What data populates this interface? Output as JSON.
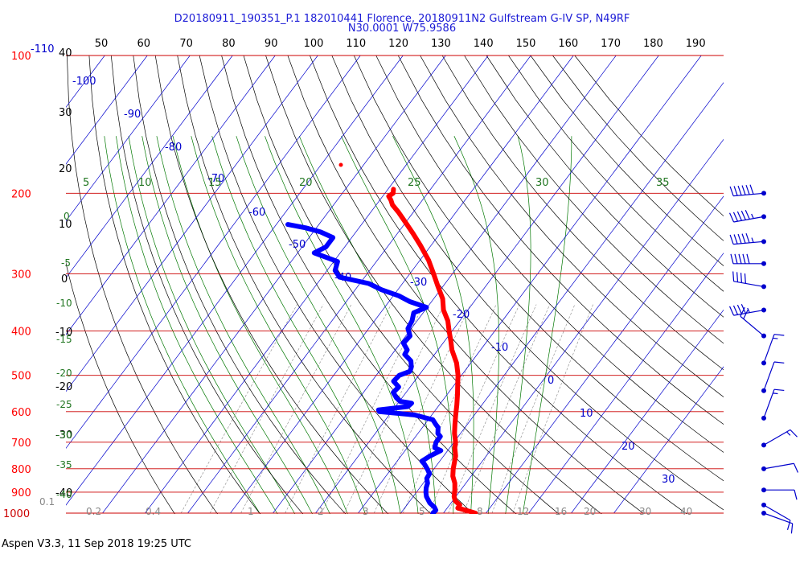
{
  "title_line1": "D20180911_190351_P.1 182010441 Florence, 20180911N2 Gulfstream G-IV SP, N49RF",
  "title_line2": "N30.0001 W75.9586",
  "footer": "Aspen V3.3, 11 Sep 2018  19:25 UTC",
  "chart_data": {
    "type": "skew-t log-p",
    "pressure_range": [
      1000,
      100
    ],
    "temperature_range_bottom": [
      -40,
      40
    ],
    "pressure_levels": [
      100,
      200,
      300,
      400,
      500,
      600,
      700,
      800,
      900,
      1000
    ],
    "pressure_labels": [
      "100",
      "200",
      "300",
      "400",
      "500",
      "600",
      "700",
      "800",
      "900",
      "1000"
    ],
    "top_fahrenheit_ticks": [
      "50",
      "60",
      "70",
      "80",
      "90",
      "100",
      "110",
      "120",
      "130",
      "140",
      "150",
      "160",
      "170",
      "180",
      "190"
    ],
    "top_left_f_label": "-110",
    "left_celsius_ticks": [
      "40",
      "30",
      "20",
      "10",
      "0",
      "-10",
      "-20",
      "-30",
      "-40"
    ],
    "isotherm_labels": [
      "-100",
      "-90",
      "-80",
      "-70",
      "-60",
      "-50",
      "-40",
      "-30",
      "-20",
      "-10",
      "0",
      "10",
      "20",
      "30"
    ],
    "theta_e_labels": [
      "5",
      "10",
      "15",
      "20",
      "25",
      "30",
      "35"
    ],
    "theta_labels_left": [
      "0",
      "-5",
      "-10",
      "-15",
      "-20",
      "-25",
      "-30",
      "-35",
      "-40"
    ],
    "mixing_ratio_labels": [
      "0.1",
      "0.2",
      "0.4",
      "1",
      "2",
      "3",
      "5",
      "8",
      "12",
      "16",
      "20",
      "30",
      "40"
    ],
    "series": [
      {
        "name": "Temperature",
        "color": "#ff0000",
        "points": [
          [
            1000,
            27.5
          ],
          [
            990,
            25.6
          ],
          [
            975,
            22.5
          ],
          [
            960,
            22.4
          ],
          [
            940,
            20.6
          ],
          [
            920,
            19.6
          ],
          [
            890,
            18.6
          ],
          [
            860,
            17.4
          ],
          [
            830,
            15.7
          ],
          [
            800,
            14.5
          ],
          [
            770,
            13.5
          ],
          [
            750,
            12.8
          ],
          [
            720,
            11.2
          ],
          [
            700,
            10.4
          ],
          [
            670,
            8.6
          ],
          [
            640,
            7.1
          ],
          [
            610,
            5.6
          ],
          [
            580,
            4.1
          ],
          [
            550,
            2.4
          ],
          [
            520,
            0.5
          ],
          [
            500,
            -0.8
          ],
          [
            470,
            -3.3
          ],
          [
            440,
            -6.7
          ],
          [
            420,
            -8.6
          ],
          [
            400,
            -10.7
          ],
          [
            380,
            -12.8
          ],
          [
            360,
            -15.7
          ],
          [
            340,
            -17.9
          ],
          [
            320,
            -21.1
          ],
          [
            300,
            -24.4
          ],
          [
            280,
            -28.0
          ],
          [
            260,
            -32.5
          ],
          [
            245,
            -36.3
          ],
          [
            230,
            -40.5
          ],
          [
            220,
            -43.5
          ],
          [
            212,
            -46.2
          ],
          [
            207,
            -47.4
          ],
          [
            203,
            -48.6
          ],
          [
            200,
            -48.1
          ],
          [
            196,
            -48.7
          ]
        ]
      },
      {
        "name": "Dewpoint",
        "color": "#0000ff",
        "points": [
          [
            1000,
            17.5
          ],
          [
            985,
            17.7
          ],
          [
            970,
            16.8
          ],
          [
            950,
            15.0
          ],
          [
            920,
            13.1
          ],
          [
            900,
            12.2
          ],
          [
            880,
            11.5
          ],
          [
            860,
            11.0
          ],
          [
            840,
            10.0
          ],
          [
            820,
            9.8
          ],
          [
            800,
            8.4
          ],
          [
            780,
            6.8
          ],
          [
            770,
            5.8
          ],
          [
            750,
            6.8
          ],
          [
            730,
            8.4
          ],
          [
            720,
            6.5
          ],
          [
            700,
            5.8
          ],
          [
            680,
            5.8
          ],
          [
            670,
            4.7
          ],
          [
            650,
            3.7
          ],
          [
            640,
            2.6
          ],
          [
            625,
            1.1
          ],
          [
            610,
            -4.1
          ],
          [
            600,
            -12.9
          ],
          [
            595,
            -13.4
          ],
          [
            585,
            -7.1
          ],
          [
            575,
            -6.8
          ],
          [
            570,
            -9.8
          ],
          [
            560,
            -11.3
          ],
          [
            545,
            -13.0
          ],
          [
            530,
            -12.7
          ],
          [
            515,
            -14.9
          ],
          [
            500,
            -14.6
          ],
          [
            490,
            -12.8
          ],
          [
            480,
            -13.2
          ],
          [
            465,
            -14.4
          ],
          [
            450,
            -17.0
          ],
          [
            440,
            -17.2
          ],
          [
            425,
            -19.3
          ],
          [
            410,
            -19.0
          ],
          [
            395,
            -20.8
          ],
          [
            380,
            -21.2
          ],
          [
            365,
            -22.2
          ],
          [
            355,
            -20.2
          ],
          [
            345,
            -25.1
          ],
          [
            335,
            -28.7
          ],
          [
            325,
            -33.8
          ],
          [
            315,
            -37.9
          ],
          [
            305,
            -45.9
          ],
          [
            295,
            -48.1
          ],
          [
            282,
            -49.1
          ],
          [
            270,
            -56.1
          ],
          [
            262,
            -54.4
          ],
          [
            250,
            -54.4
          ],
          [
            243,
            -58.3
          ],
          [
            238,
            -62.5
          ],
          [
            234,
            -67.3
          ]
        ]
      }
    ],
    "wind_barbs": [
      {
        "pressure": 200,
        "speed_kt": 60,
        "direction_deg": 265
      },
      {
        "pressure": 225,
        "speed_kt": 55,
        "direction_deg": 260
      },
      {
        "pressure": 255,
        "speed_kt": 55,
        "direction_deg": 265
      },
      {
        "pressure": 285,
        "speed_kt": 50,
        "direction_deg": 270
      },
      {
        "pressure": 320,
        "speed_kt": 40,
        "direction_deg": 280
      },
      {
        "pressure": 360,
        "speed_kt": 45,
        "direction_deg": 260
      },
      {
        "pressure": 410,
        "speed_kt": 20,
        "direction_deg": 310
      },
      {
        "pressure": 470,
        "speed_kt": 15,
        "direction_deg": 20
      },
      {
        "pressure": 540,
        "speed_kt": 10,
        "direction_deg": 20
      },
      {
        "pressure": 620,
        "speed_kt": 15,
        "direction_deg": 20
      },
      {
        "pressure": 710,
        "speed_kt": 15,
        "direction_deg": 60
      },
      {
        "pressure": 800,
        "speed_kt": 10,
        "direction_deg": 80
      },
      {
        "pressure": 890,
        "speed_kt": 10,
        "direction_deg": 90
      },
      {
        "pressure": 960,
        "speed_kt": 10,
        "direction_deg": 120
      },
      {
        "pressure": 1000,
        "speed_kt": 10,
        "direction_deg": 110
      }
    ],
    "colors": {
      "isobar": "#cc0000",
      "pressure_label": "#ff0000",
      "isotherm": "#0000cc",
      "dry_adiabat": "#000000",
      "moist_adiabat": "#007700",
      "mixing_ratio": "#888888",
      "theta_label": "#227722",
      "barb": "#0000cc"
    }
  }
}
